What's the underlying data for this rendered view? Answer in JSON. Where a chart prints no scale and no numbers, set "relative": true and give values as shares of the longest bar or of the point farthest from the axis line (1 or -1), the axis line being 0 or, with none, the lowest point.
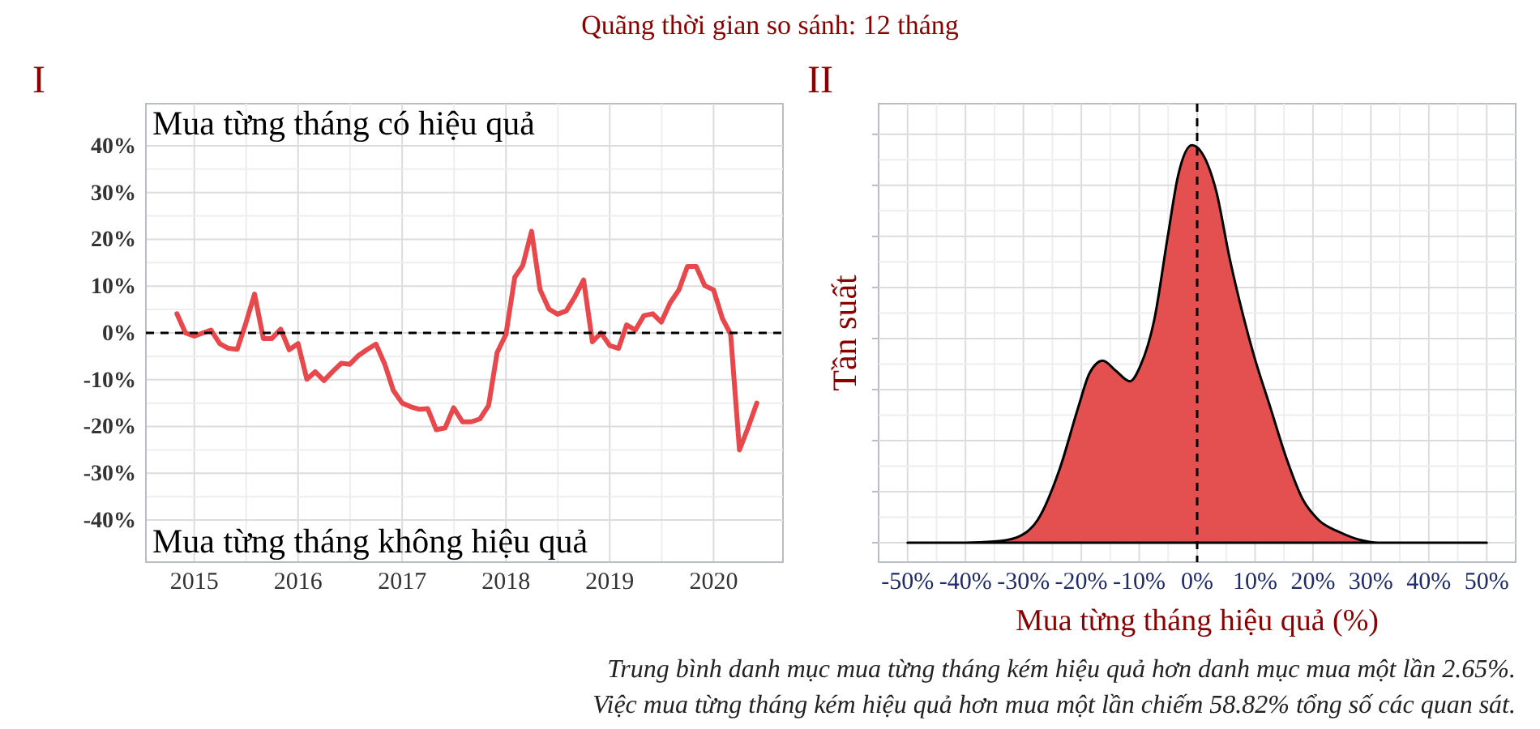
{
  "chart_data": [
    {
      "type": "line",
      "title": "I",
      "annotations": [
        "Quãng thời gian so sánh: 12 tháng",
        "Mua từng tháng có hiệu quả",
        "Mua từng tháng không hiệu quả"
      ],
      "x": [
        "2014-11",
        "2014-12",
        "2015-01",
        "2015-02",
        "2015-03",
        "2015-04",
        "2015-05",
        "2015-06",
        "2015-07",
        "2015-08",
        "2015-09",
        "2015-10",
        "2015-11",
        "2015-12",
        "2016-01",
        "2016-02",
        "2016-03",
        "2016-04",
        "2016-05",
        "2016-06",
        "2016-07",
        "2016-08",
        "2016-09",
        "2016-10",
        "2016-11",
        "2016-12",
        "2017-01",
        "2017-02",
        "2017-03",
        "2017-04",
        "2017-05",
        "2017-06",
        "2017-07",
        "2017-08",
        "2017-09",
        "2017-10",
        "2017-11",
        "2017-12",
        "2018-01",
        "2018-02",
        "2018-03",
        "2018-04",
        "2018-05",
        "2018-06",
        "2018-07",
        "2018-08",
        "2018-09",
        "2018-10",
        "2018-11",
        "2018-12",
        "2019-01",
        "2019-02",
        "2019-03",
        "2019-04",
        "2019-05",
        "2019-06",
        "2019-07",
        "2019-08",
        "2019-09",
        "2019-10",
        "2019-11",
        "2019-12",
        "2020-01",
        "2020-02",
        "2020-03",
        "2020-04",
        "2020-05",
        "2020-06"
      ],
      "series": [
        {
          "color": "#e8474b",
          "values": [
            4.1,
            0,
            -0.7,
            0,
            0.6,
            -2.3,
            -3.3,
            -3.5,
            2,
            8.3,
            -1.2,
            -1.2,
            0.8,
            -3.6,
            -2.3,
            -9.9,
            -8.3,
            -10.2,
            -8.3,
            -6.5,
            -6.7,
            -4.8,
            -3.5,
            -2.4,
            -6.7,
            -12.3,
            -15,
            -15.8,
            -16.3,
            -16.2,
            -20.7,
            -20.3,
            -16,
            -19,
            -19,
            -18.4,
            -15.5,
            -4.2,
            -0.3,
            11.9,
            14.4,
            21.7,
            9.2,
            5.1,
            4,
            4.7,
            7.8,
            11.3,
            -1.9,
            0,
            -2.7,
            -3.3,
            1.7,
            0.6,
            3.7,
            4.1,
            2.3,
            6.4,
            9.2,
            14.2,
            14.2,
            10.1,
            9.2,
            3.1,
            -0.3,
            -25,
            -20.3,
            -15
          ]
        }
      ],
      "xlim": [
        "2014-07-15",
        "2020-09-01"
      ],
      "xticks": [
        "2015",
        "2016",
        "2017",
        "2018",
        "2019",
        "2020"
      ],
      "ylim": [
        -49,
        49
      ],
      "yticks": [
        {
          "value": -40,
          "label": "-40%"
        },
        {
          "value": -30,
          "label": "-30%"
        },
        {
          "value": -20,
          "label": "-20%"
        },
        {
          "value": -10,
          "label": "-10%"
        },
        {
          "value": 0,
          "label": "0%"
        },
        {
          "value": 10,
          "label": "10%"
        },
        {
          "value": 20,
          "label": "20%"
        },
        {
          "value": 30,
          "label": "30%"
        },
        {
          "value": 40,
          "label": "40%"
        }
      ],
      "ref_lines": [
        {
          "axis": "y",
          "value": 0,
          "line_style": "dashed",
          "color": "#000000"
        }
      ],
      "grid": true
    },
    {
      "type": "area",
      "title": "II",
      "relative": true,
      "xlabel": "Mua từng tháng hiệu quả (%)",
      "ylabel": "Tần suất",
      "annotations": [
        "Trung bình danh mục mua từng tháng kém hiệu quả hơn danh mục mua một lần 2.65%.",
        "Việc mua từng tháng kém hiệu quả hơn mua một lần chiếm 58.82% tổng số các quan sát."
      ],
      "series": [
        {
          "color": "#e34b4b",
          "x": [
            -50,
            -40,
            -35,
            -31.2,
            -27.5,
            -23.7,
            -20.5,
            -18.6,
            -16.3,
            -14,
            -11.6,
            -9.8,
            -7.4,
            -5.1,
            -3.3,
            -0.9,
            0.5,
            3.3,
            5.6,
            7.9,
            9.8,
            12.6,
            15.4,
            18.2,
            20.9,
            24.7,
            28.4,
            31.2,
            40,
            50
          ],
          "values": [
            0,
            0,
            0.003,
            0.013,
            0.058,
            0.187,
            0.342,
            0.426,
            0.458,
            0.432,
            0.406,
            0.445,
            0.561,
            0.768,
            0.923,
            1,
            0.987,
            0.884,
            0.716,
            0.574,
            0.471,
            0.342,
            0.213,
            0.11,
            0.058,
            0.026,
            0.006,
            0,
            0,
            0
          ]
        }
      ],
      "xlim": [
        -55,
        55
      ],
      "xticks": [
        {
          "value": -50,
          "label": "-50%"
        },
        {
          "value": -40,
          "label": "-40%"
        },
        {
          "value": -30,
          "label": "-30%"
        },
        {
          "value": -20,
          "label": "-20%"
        },
        {
          "value": -10,
          "label": "-10%"
        },
        {
          "value": 0,
          "label": "0%"
        },
        {
          "value": 10,
          "label": "10%"
        },
        {
          "value": 20,
          "label": "20%"
        },
        {
          "value": 30,
          "label": "30%"
        },
        {
          "value": 40,
          "label": "40%"
        },
        {
          "value": 50,
          "label": "50%"
        }
      ],
      "ref_lines": [
        {
          "axis": "x",
          "value": 0,
          "line_style": "dashed",
          "color": "#000000"
        }
      ],
      "grid": true,
      "tick_labels": "x"
    }
  ]
}
